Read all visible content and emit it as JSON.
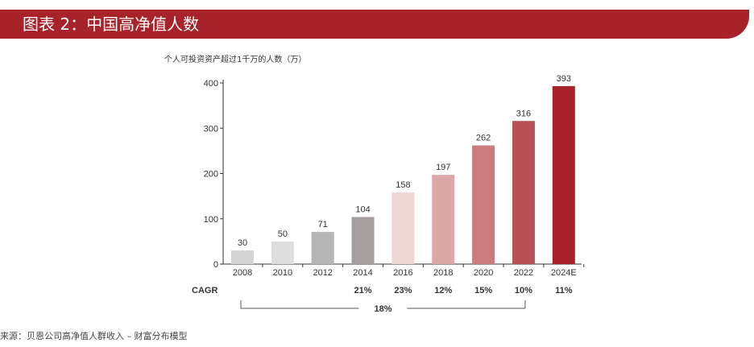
{
  "header": {
    "title": "图表 2：中国高净值人数"
  },
  "chart_data": {
    "type": "bar",
    "ylabel": "个人可投资资产超过1千万的人数（万）",
    "categories": [
      "2008",
      "2010",
      "2012",
      "2014",
      "2016",
      "2018",
      "2020",
      "2022",
      "2024E"
    ],
    "values": [
      30,
      50,
      71,
      104,
      158,
      197,
      262,
      316,
      393
    ],
    "bar_colors": [
      "#d5d5d5",
      "#dedede",
      "#b5b5b5",
      "#a49e9e",
      "#efd4d4",
      "#dba7a7",
      "#c97b7d",
      "#b75155",
      "#a8222a"
    ],
    "ylim": [
      0,
      400
    ],
    "yticks": [
      0,
      100,
      200,
      300,
      400
    ],
    "grid": false,
    "cagr_label": "CAGR",
    "cagr_values": [
      "",
      "",
      "",
      "21%",
      "23%",
      "12%",
      "15%",
      "10%",
      "11%"
    ],
    "overall_cagr": "18%"
  },
  "footer": {
    "source": "来源：贝恩公司高净值人群收入 – 财富分布模型"
  }
}
